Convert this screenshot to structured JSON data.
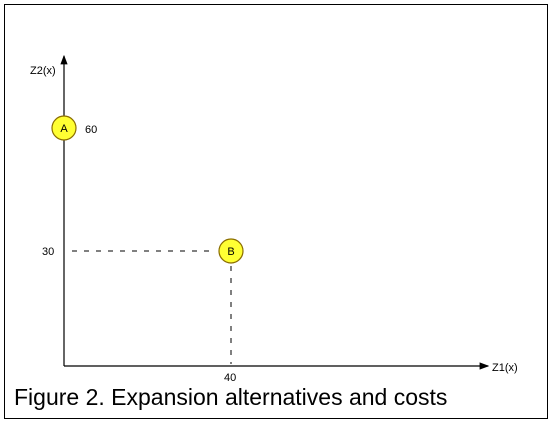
{
  "axes": {
    "x_label": "Z1(x)",
    "y_label": "Z2(x)"
  },
  "points": [
    {
      "label": "A",
      "z1": 0,
      "z2": 60,
      "value_label": "60"
    },
    {
      "label": "B",
      "z1": 40,
      "z2": 30
    }
  ],
  "guides": {
    "x_value_label": "40",
    "y_value_label": "30"
  },
  "caption": "Figure 2.  Expansion alternatives and costs",
  "colors": {
    "point_fill": "#ffff33",
    "point_stroke": "#8a6d00",
    "line": "#000000"
  }
}
